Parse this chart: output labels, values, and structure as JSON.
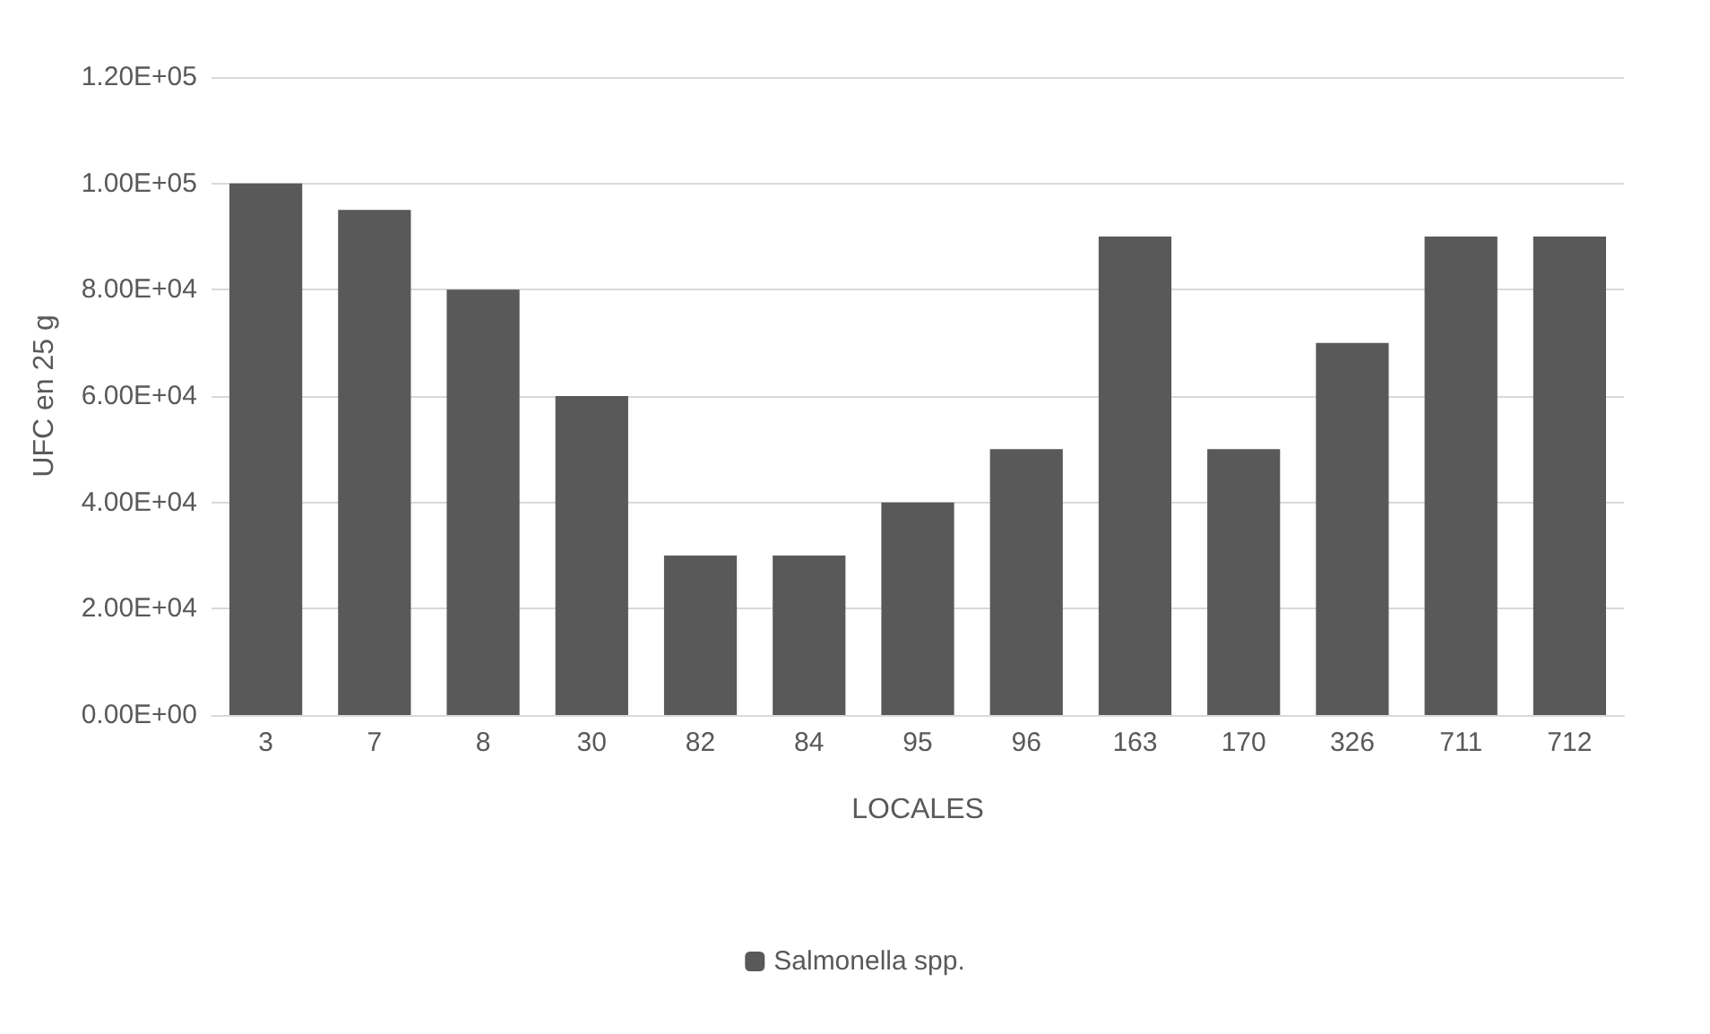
{
  "chart_data": {
    "type": "bar",
    "xlabel": "LOCALES",
    "ylabel": "UFC en 25 g",
    "categories": [
      "3",
      "7",
      "8",
      "30",
      "82",
      "84",
      "95",
      "96",
      "163",
      "170",
      "326",
      "711",
      "712"
    ],
    "series": [
      {
        "name": "Salmonella spp.",
        "color": "#595959",
        "values": [
          100000,
          95000,
          80000,
          60000,
          30000,
          30000,
          40000,
          50000,
          90000,
          50000,
          70000,
          90000,
          90000
        ]
      }
    ],
    "ylim": [
      0,
      120000
    ],
    "yticks": [
      {
        "value": 0,
        "label": "0.00E+00"
      },
      {
        "value": 20000,
        "label": "2.00E+04"
      },
      {
        "value": 40000,
        "label": "4.00E+04"
      },
      {
        "value": 60000,
        "label": "6.00E+04"
      },
      {
        "value": 80000,
        "label": "8.00E+04"
      },
      {
        "value": 100000,
        "label": "1.00E+05"
      },
      {
        "value": 120000,
        "label": "1.20E+05"
      }
    ],
    "grid": "y",
    "legend": "bottom"
  }
}
